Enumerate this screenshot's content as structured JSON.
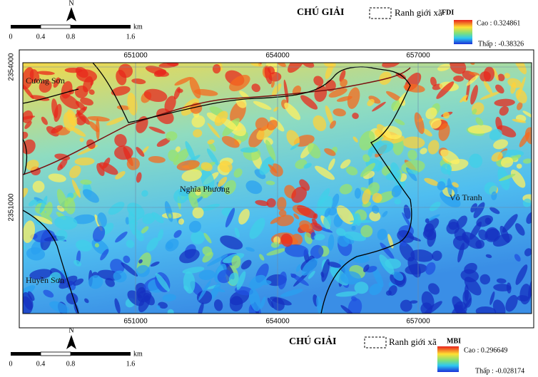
{
  "top_panel": {
    "north_arrow": "N",
    "scale_bar": {
      "ticks": [
        "0",
        "0.4",
        "0.8",
        "1.6"
      ],
      "unit": "km"
    },
    "legend": {
      "title": "CHÚ GIẢI",
      "boundary": "Ranh giới xã",
      "index": "FDI",
      "high": "Cao : 0.324861",
      "low": "Thấp : -0.38326"
    }
  },
  "map": {
    "x_labels": [
      "651000",
      "654000",
      "657000"
    ],
    "y_labels": [
      "2354000",
      "2351000"
    ],
    "places": [
      "Cương Sơn",
      "Nghĩa Phương",
      "Vô Tranh",
      "Huyền Sơn"
    ]
  },
  "bottom_panel": {
    "north_arrow": "N",
    "scale_bar": {
      "ticks": [
        "0",
        "0.4",
        "0.8",
        "1.6"
      ],
      "unit": "km"
    },
    "legend": {
      "title": "CHÚ GIẢI",
      "boundary": "Ranh giới xã",
      "index": "MBI",
      "high": "Cao : 0.296649",
      "low": "Thấp : -0.028174"
    }
  }
}
